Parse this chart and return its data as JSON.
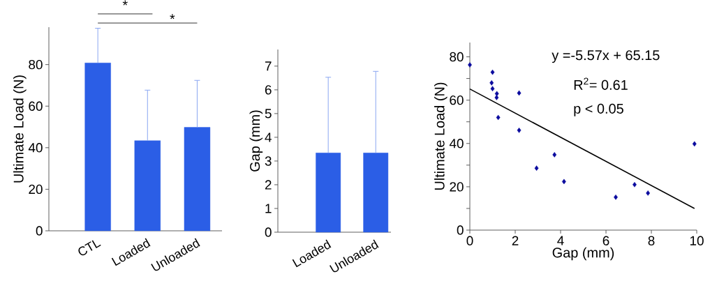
{
  "chart_data": [
    {
      "type": "bar",
      "categories": [
        "CTL",
        "Loaded",
        "Unloaded"
      ],
      "values": [
        80.8,
        43.4,
        49.8
      ],
      "errors": [
        [
          80.8,
          97.5
        ],
        [
          43.4,
          67.7
        ],
        [
          49.8,
          72.4
        ]
      ],
      "color": "#2b5ee6",
      "ylabel": "Ultimate Load (N)",
      "ylim": [
        0,
        98
      ],
      "yticks": [
        0,
        20,
        40,
        60,
        80
      ],
      "annotations": [
        "*",
        "*"
      ]
    },
    {
      "type": "bar",
      "categories": [
        "Loaded",
        "Unloaded"
      ],
      "values": [
        3.34,
        3.34
      ],
      "errors": [
        [
          3.34,
          6.53
        ],
        [
          3.34,
          6.78
        ]
      ],
      "color": "#2b5ee6",
      "ylabel": "Gap (mm)",
      "ylim": [
        0,
        7.7
      ],
      "yticks": [
        0,
        1,
        2,
        3,
        4,
        5,
        6,
        7
      ]
    },
    {
      "type": "scatter",
      "xlabel": "Gap (mm)",
      "ylabel": "Ultimate Load (N)",
      "marker": "diamond",
      "series": [
        {
          "type": "scatter",
          "color": "#0b0b9e",
          "x": [
            0,
            1.0,
            0.96,
            1.0,
            1.19,
            1.18,
            1.25,
            2.17,
            2.17,
            2.94,
            3.73,
            4.15,
            6.43,
            7.26,
            7.85,
            9.9
          ],
          "values": [
            76.3,
            72.9,
            68.0,
            65.3,
            63.0,
            61.2,
            52.0,
            63.3,
            46.1,
            28.6,
            34.8,
            22.4,
            15.2,
            21.0,
            17.1,
            39.8
          ]
        },
        {
          "type": "line",
          "color": "#000000",
          "marker": "none",
          "x": [
            0,
            9.9
          ],
          "values": [
            65.15,
            10.0
          ]
        }
      ],
      "xlim": [
        0,
        10
      ],
      "xticks": [
        0,
        2,
        4,
        6,
        8,
        10
      ],
      "ylim": [
        0,
        86.6
      ],
      "yticks": [
        0,
        {
          "value": 10,
          "label": null
        },
        20,
        {
          "value": 30,
          "label": null
        },
        40,
        {
          "value": 50,
          "label": null
        },
        60,
        {
          "value": 70,
          "label": null
        },
        80
      ],
      "annotations": [
        "y =-5.57x + 65.15",
        "R$^{2}$= 0.61",
        "p < 0.05"
      ]
    }
  ]
}
